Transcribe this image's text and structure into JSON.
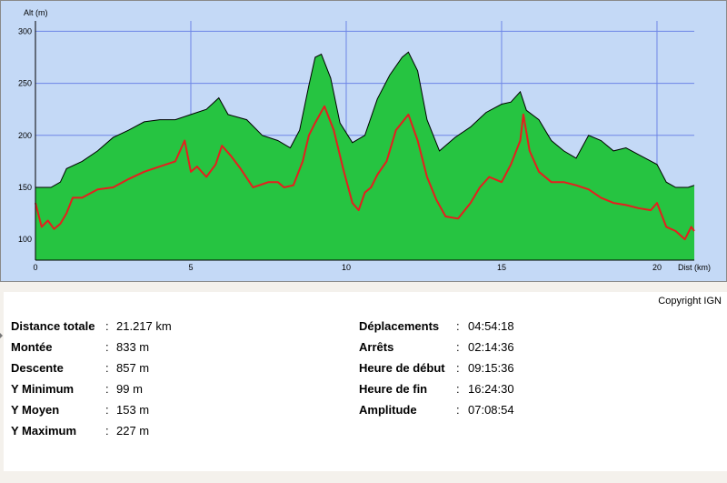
{
  "chart_data": {
    "type": "area",
    "ylabel": "Alt (m)",
    "xlabel": "Dist (km)",
    "xlim": [
      0,
      21.2
    ],
    "ylim": [
      80,
      310
    ],
    "x_ticks": [
      0,
      5,
      10,
      15,
      20
    ],
    "y_ticks": [
      100,
      150,
      200,
      250,
      300
    ],
    "grid": true,
    "colors": {
      "plot_bg": "#c4d9f6",
      "area": "#26c441",
      "line": "#e61e1e",
      "grid": "#6e86e6"
    },
    "series": [
      {
        "kind": "area",
        "x": [
          0,
          0.5,
          0.8,
          1.0,
          1.5,
          2.0,
          2.5,
          3.0,
          3.5,
          4.0,
          4.5,
          5.0,
          5.5,
          5.9,
          6.2,
          6.8,
          7.3,
          7.8,
          8.2,
          8.5,
          8.8,
          9.0,
          9.2,
          9.5,
          9.8,
          10.2,
          10.6,
          11.0,
          11.4,
          11.8,
          12.0,
          12.3,
          12.6,
          13.0,
          13.5,
          14.0,
          14.5,
          15.0,
          15.3,
          15.6,
          15.8,
          16.2,
          16.6,
          17.0,
          17.4,
          17.8,
          18.2,
          18.6,
          19.0,
          19.5,
          20.0,
          20.3,
          20.6,
          21.0,
          21.2
        ],
        "y": [
          150,
          150,
          155,
          168,
          175,
          185,
          198,
          205,
          213,
          215,
          215,
          220,
          225,
          236,
          220,
          215,
          200,
          195,
          188,
          205,
          248,
          275,
          278,
          255,
          212,
          193,
          200,
          235,
          258,
          275,
          280,
          262,
          215,
          185,
          198,
          208,
          222,
          230,
          232,
          242,
          224,
          215,
          195,
          185,
          178,
          200,
          195,
          185,
          188,
          180,
          172,
          155,
          150,
          150,
          152
        ]
      },
      {
        "kind": "line",
        "x": [
          0,
          0.2,
          0.4,
          0.6,
          0.8,
          1.0,
          1.2,
          1.5,
          2.0,
          2.5,
          3.0,
          3.5,
          4.0,
          4.5,
          4.8,
          5.0,
          5.2,
          5.5,
          5.8,
          6.0,
          6.3,
          6.6,
          7.0,
          7.5,
          7.8,
          8.0,
          8.3,
          8.6,
          8.8,
          9.0,
          9.3,
          9.6,
          9.9,
          10.2,
          10.4,
          10.6,
          10.8,
          11.0,
          11.3,
          11.6,
          12.0,
          12.3,
          12.6,
          12.9,
          13.2,
          13.6,
          14.0,
          14.3,
          14.6,
          15.0,
          15.3,
          15.6,
          15.7,
          15.9,
          16.2,
          16.6,
          17.0,
          17.4,
          17.8,
          18.2,
          18.6,
          19.0,
          19.4,
          19.8,
          20.0,
          20.3,
          20.6,
          20.9,
          21.1,
          21.2
        ],
        "y": [
          135,
          112,
          118,
          110,
          115,
          125,
          140,
          140,
          148,
          150,
          158,
          165,
          170,
          175,
          195,
          165,
          170,
          160,
          172,
          190,
          180,
          168,
          150,
          155,
          155,
          150,
          152,
          175,
          200,
          212,
          228,
          205,
          168,
          135,
          128,
          145,
          150,
          162,
          175,
          205,
          220,
          195,
          160,
          138,
          122,
          120,
          135,
          150,
          160,
          155,
          172,
          195,
          220,
          185,
          165,
          155,
          155,
          152,
          148,
          140,
          135,
          133,
          130,
          128,
          135,
          112,
          108,
          100,
          112,
          108
        ]
      }
    ]
  },
  "copyright": "Copyright IGN",
  "stats_left": [
    {
      "label": "Distance totale",
      "value": "21.217 km"
    },
    {
      "label": "Montée",
      "value": "833 m"
    },
    {
      "label": "Descente",
      "value": "857 m"
    },
    {
      "label": "Y Minimum",
      "value": "99 m"
    },
    {
      "label": "Y Moyen",
      "value": "153 m"
    },
    {
      "label": "Y Maximum",
      "value": "227 m"
    }
  ],
  "stats_right": [
    {
      "label": "Déplacements",
      "value": "04:54:18"
    },
    {
      "label": "Arrêts",
      "value": "02:14:36"
    },
    {
      "label": "Heure de début",
      "value": "09:15:36"
    },
    {
      "label": "Heure de fin",
      "value": "16:24:30"
    },
    {
      "label": "Amplitude",
      "value": "07:08:54"
    }
  ]
}
